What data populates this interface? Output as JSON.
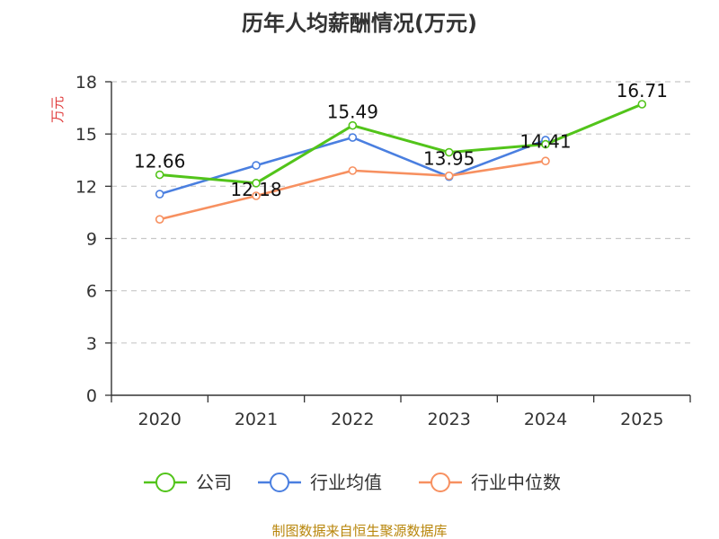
{
  "chart_data": {
    "type": "line",
    "title": "历年人均薪酬情况(万元)",
    "ylabel": "万元",
    "xlabel": "",
    "categories": [
      "2020",
      "2021",
      "2022",
      "2023",
      "2024",
      "2025"
    ],
    "ylim": [
      0,
      18
    ],
    "yticks": [
      "0",
      "3",
      "6",
      "9",
      "12",
      "15",
      "18"
    ],
    "grid": true,
    "legend_position": "bottom",
    "series": [
      {
        "name": "公司",
        "color": "#52c41a",
        "values": [
          12.66,
          12.18,
          15.49,
          13.95,
          14.41,
          16.71
        ],
        "labels": [
          "12.66",
          "12.18",
          "15.49",
          "13.95",
          "14.41",
          "16.71"
        ]
      },
      {
        "name": "行业均值",
        "color": "#4a7fe0",
        "values": [
          11.55,
          13.2,
          14.8,
          12.55,
          14.65,
          null
        ]
      },
      {
        "name": "行业中位数",
        "color": "#f79060",
        "values": [
          10.1,
          11.45,
          12.9,
          12.6,
          13.45,
          null
        ]
      }
    ],
    "source": "制图数据来自恒生聚源数据库"
  }
}
